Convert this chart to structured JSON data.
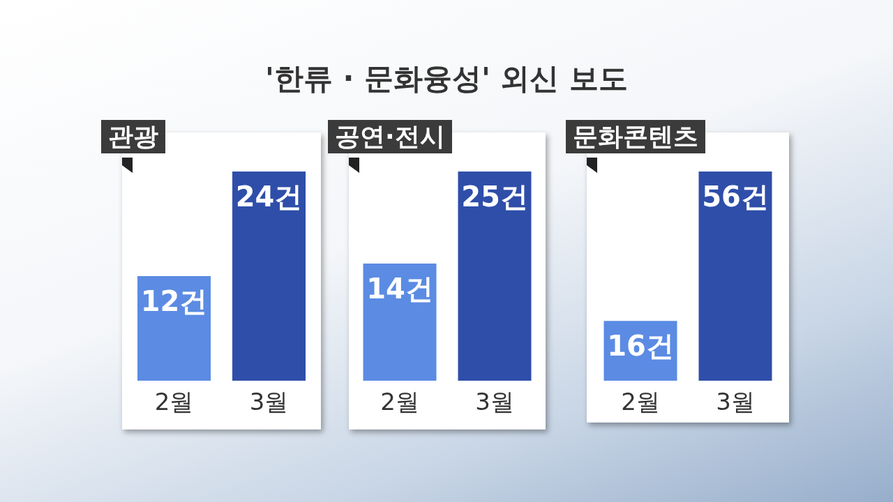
{
  "chart_data": [
    {
      "type": "bar",
      "title": "관광",
      "categories": [
        "2월",
        "3월"
      ],
      "values": [
        12,
        24
      ],
      "colors": [
        "#5b8be3",
        "#2e4ea9"
      ],
      "value_labels": [
        "12건",
        "24건"
      ],
      "annotations": [
        "'한류 · 문화융성' 외신 보도"
      ]
    },
    {
      "type": "bar",
      "title": "공연·전시",
      "categories": [
        "2월",
        "3월"
      ],
      "values": [
        14,
        25
      ],
      "colors": [
        "#5b8be3",
        "#2e4ea9"
      ],
      "value_labels": [
        "14건",
        "25건"
      ]
    },
    {
      "type": "bar",
      "title": "문화콘텐츠",
      "categories": [
        "2월",
        "3월"
      ],
      "values": [
        16,
        56
      ],
      "colors": [
        "#5b8be3",
        "#2e4ea9"
      ],
      "value_labels": [
        "16건",
        "56건"
      ]
    }
  ]
}
